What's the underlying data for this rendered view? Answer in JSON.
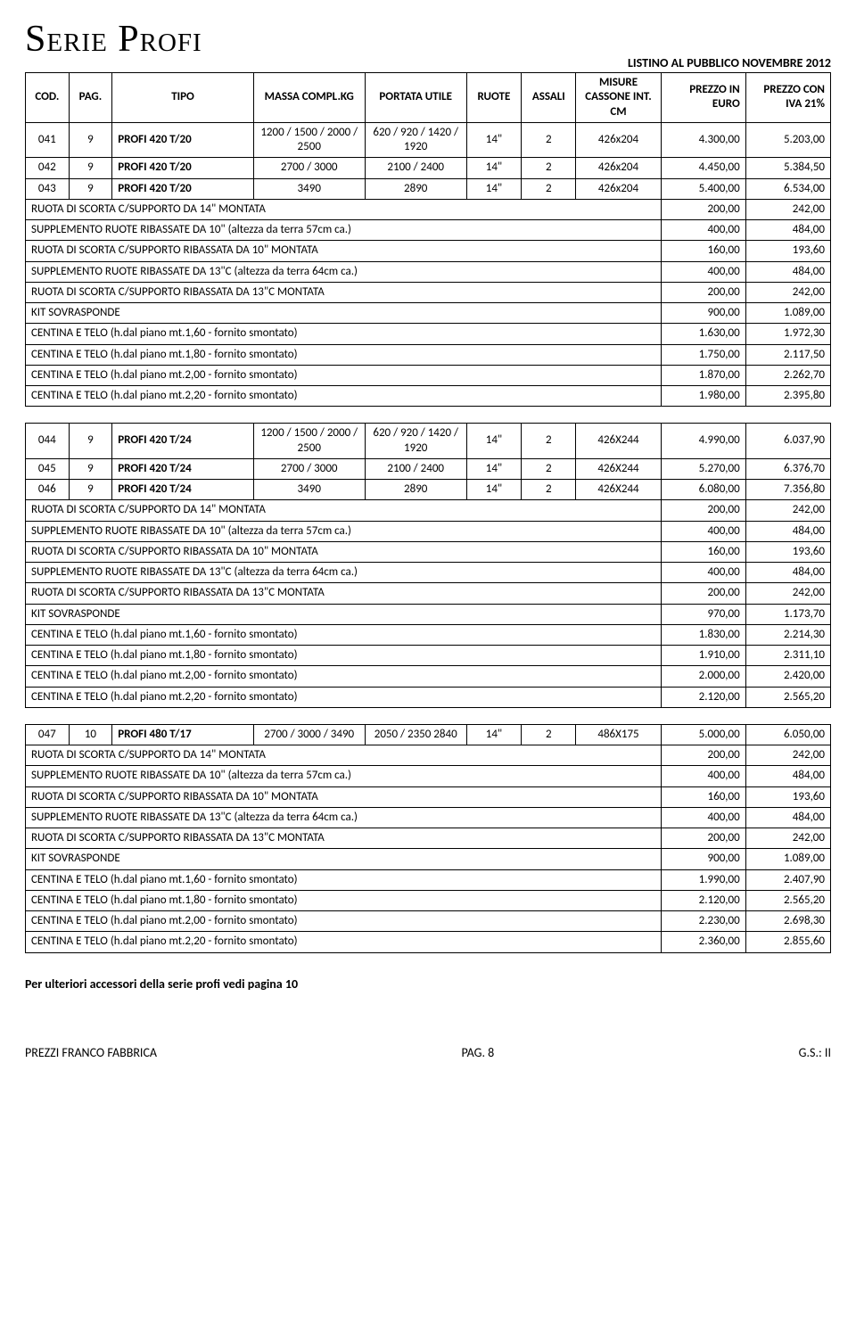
{
  "series_title": "Serie Profi",
  "listino": "LISTINO AL PUBBLICO NOVEMBRE 2012",
  "headers": {
    "cod": "COD.",
    "pag": "PAG.",
    "tipo": "TIPO",
    "massa": "MASSA COMPL.KG",
    "portata": "PORTATA UTILE",
    "ruote": "RUOTE",
    "assali": "ASSALI",
    "misure": "MISURE CASSONE INT. CM",
    "prezzo": "PREZZO IN EURO",
    "prezzo_iva": "PREZZO CON IVA 21%"
  },
  "sections": [
    {
      "rows": [
        {
          "cod": "041",
          "pag": "9",
          "tipo": "PROFI 420 T/20",
          "massa": "1200 / 1500 / 2000 / 2500",
          "portata": "620 / 920 / 1420 / 1920",
          "ruote": "14\"",
          "assali": "2",
          "misure": "426x204",
          "p1": "4.300,00",
          "p2": "5.203,00"
        },
        {
          "cod": "042",
          "pag": "9",
          "tipo": "PROFI 420 T/20",
          "massa": "2700 / 3000",
          "portata": "2100 / 2400",
          "ruote": "14\"",
          "assali": "2",
          "misure": "426x204",
          "p1": "4.450,00",
          "p2": "5.384,50"
        },
        {
          "cod": "043",
          "pag": "9",
          "tipo": "PROFI 420 T/20",
          "massa": "3490",
          "portata": "2890",
          "ruote": "14\"",
          "assali": "2",
          "misure": "426x204",
          "p1": "5.400,00",
          "p2": "6.534,00"
        }
      ],
      "extras": [
        {
          "label": "RUOTA DI SCORTA C/SUPPORTO DA 14\" MONTATA",
          "p1": "200,00",
          "p2": "242,00"
        },
        {
          "label": "SUPPLEMENTO RUOTE RIBASSATE DA 10\" (altezza da terra 57cm ca.)",
          "p1": "400,00",
          "p2": "484,00"
        },
        {
          "label": "RUOTA DI SCORTA C/SUPPORTO RIBASSATA DA 10\" MONTATA",
          "p1": "160,00",
          "p2": "193,60"
        },
        {
          "label": "SUPPLEMENTO RUOTE RIBASSATE DA 13\"C (altezza da terra 64cm ca.)",
          "p1": "400,00",
          "p2": "484,00"
        },
        {
          "label": "RUOTA DI SCORTA C/SUPPORTO RIBASSATA DA 13\"C MONTATA",
          "p1": "200,00",
          "p2": "242,00"
        },
        {
          "label": "KIT SOVRASPONDE",
          "p1": "900,00",
          "p2": "1.089,00"
        },
        {
          "label": "CENTINA E TELO (h.dal piano mt.1,60 - fornito smontato)",
          "p1": "1.630,00",
          "p2": "1.972,30"
        },
        {
          "label": "CENTINA E TELO (h.dal piano mt.1,80 - fornito smontato)",
          "p1": "1.750,00",
          "p2": "2.117,50"
        },
        {
          "label": "CENTINA E TELO (h.dal piano mt.2,00 - fornito smontato)",
          "p1": "1.870,00",
          "p2": "2.262,70"
        },
        {
          "label": "CENTINA E TELO (h.dal piano mt.2,20 - fornito smontato)",
          "p1": "1.980,00",
          "p2": "2.395,80"
        }
      ]
    },
    {
      "rows": [
        {
          "cod": "044",
          "pag": "9",
          "tipo": "PROFI 420 T/24",
          "massa": "1200 / 1500 / 2000 / 2500",
          "portata": "620 / 920 / 1420 / 1920",
          "ruote": "14\"",
          "assali": "2",
          "misure": "426X244",
          "p1": "4.990,00",
          "p2": "6.037,90"
        },
        {
          "cod": "045",
          "pag": "9",
          "tipo": "PROFI 420 T/24",
          "massa": "2700 / 3000",
          "portata": "2100 / 2400",
          "ruote": "14\"",
          "assali": "2",
          "misure": "426X244",
          "p1": "5.270,00",
          "p2": "6.376,70"
        },
        {
          "cod": "046",
          "pag": "9",
          "tipo": "PROFI 420 T/24",
          "massa": "3490",
          "portata": "2890",
          "ruote": "14\"",
          "assali": "2",
          "misure": "426X244",
          "p1": "6.080,00",
          "p2": "7.356,80"
        }
      ],
      "extras": [
        {
          "label": "RUOTA DI SCORTA C/SUPPORTO DA 14\" MONTATA",
          "p1": "200,00",
          "p2": "242,00"
        },
        {
          "label": "SUPPLEMENTO RUOTE RIBASSATE DA 10\" (altezza da terra 57cm ca.)",
          "p1": "400,00",
          "p2": "484,00"
        },
        {
          "label": "RUOTA DI SCORTA C/SUPPORTO RIBASSATA DA 10\" MONTATA",
          "p1": "160,00",
          "p2": "193,60"
        },
        {
          "label": "SUPPLEMENTO RUOTE RIBASSATE DA 13\"C (altezza da terra 64cm ca.)",
          "p1": "400,00",
          "p2": "484,00"
        },
        {
          "label": "RUOTA DI SCORTA C/SUPPORTO RIBASSATA DA 13\"C MONTATA",
          "p1": "200,00",
          "p2": "242,00"
        },
        {
          "label": "KIT SOVRASPONDE",
          "p1": "970,00",
          "p2": "1.173,70"
        },
        {
          "label": "CENTINA E TELO (h.dal piano mt.1,60 - fornito smontato)",
          "p1": "1.830,00",
          "p2": "2.214,30"
        },
        {
          "label": "CENTINA E TELO (h.dal piano mt.1,80 - fornito smontato)",
          "p1": "1.910,00",
          "p2": "2.311,10"
        },
        {
          "label": "CENTINA E TELO (h.dal piano mt.2,00 - fornito smontato)",
          "p1": "2.000,00",
          "p2": "2.420,00"
        },
        {
          "label": "CENTINA E TELO (h.dal piano mt.2,20 - fornito smontato)",
          "p1": "2.120,00",
          "p2": "2.565,20"
        }
      ]
    },
    {
      "rows": [
        {
          "cod": "047",
          "pag": "10",
          "tipo": "PROFI 480 T/17",
          "massa": "2700 / 3000 / 3490",
          "portata": "2050 / 2350 2840",
          "ruote": "14\"",
          "assali": "2",
          "misure": "486X175",
          "p1": "5.000,00",
          "p2": "6.050,00"
        }
      ],
      "extras": [
        {
          "label": "RUOTA DI SCORTA C/SUPPORTO DA 14\" MONTATA",
          "p1": "200,00",
          "p2": "242,00"
        },
        {
          "label": "SUPPLEMENTO RUOTE RIBASSATE DA 10\" (altezza da terra 57cm ca.)",
          "p1": "400,00",
          "p2": "484,00"
        },
        {
          "label": "RUOTA DI SCORTA C/SUPPORTO RIBASSATA DA 10\" MONTATA",
          "p1": "160,00",
          "p2": "193,60"
        },
        {
          "label": "SUPPLEMENTO RUOTE RIBASSATE DA 13\"C (altezza da terra 64cm ca.)",
          "p1": "400,00",
          "p2": "484,00"
        },
        {
          "label": "RUOTA DI SCORTA C/SUPPORTO RIBASSATA DA 13\"C MONTATA",
          "p1": "200,00",
          "p2": "242,00"
        },
        {
          "label": "KIT SOVRASPONDE",
          "p1": "900,00",
          "p2": "1.089,00"
        },
        {
          "label": "CENTINA E TELO (h.dal piano mt.1,60 - fornito smontato)",
          "p1": "1.990,00",
          "p2": "2.407,90"
        },
        {
          "label": "CENTINA E TELO (h.dal piano mt.1,80 - fornito smontato)",
          "p1": "2.120,00",
          "p2": "2.565,20"
        },
        {
          "label": "CENTINA E TELO (h.dal piano mt.2,00 - fornito smontato)",
          "p1": "2.230,00",
          "p2": "2.698,30"
        },
        {
          "label": "CENTINA E TELO (h.dal piano mt.2,20 - fornito smontato)",
          "p1": "2.360,00",
          "p2": "2.855,60"
        }
      ]
    }
  ],
  "footer_note": "Per ulteriori accessori della serie profi vedi pagina 10",
  "footer": {
    "left": "PREZZI FRANCO FABBRICA",
    "center": "PAG. 8",
    "right": "G.S.: II"
  }
}
